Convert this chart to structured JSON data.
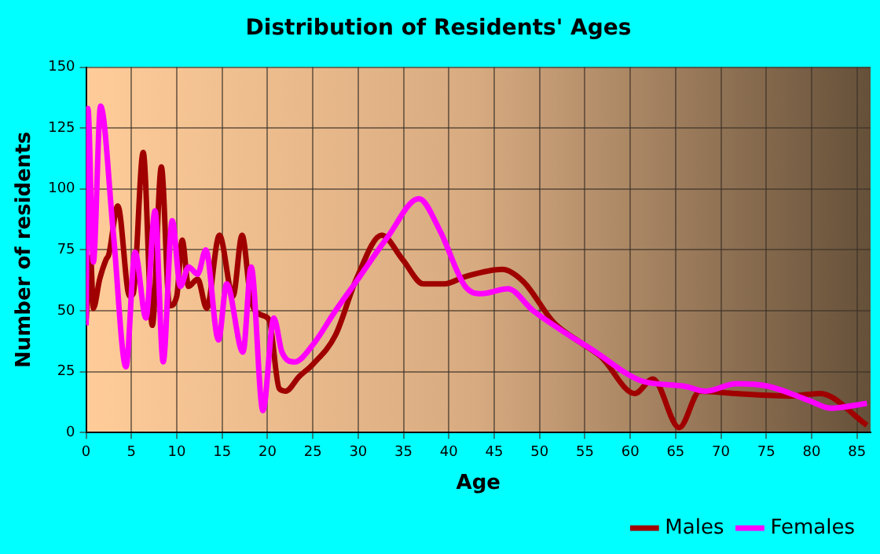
{
  "chart_data": {
    "type": "line",
    "title": "Distribution of Residents' Ages",
    "xlabel": "Age",
    "ylabel": "Number of residents",
    "series": [
      {
        "name": "Males",
        "color": "#a00000",
        "x": [
          0,
          0.5,
          0.8,
          1.5,
          2.2,
          2.5,
          3.5,
          4.8,
          5.2,
          6.3,
          7.3,
          8.3,
          9.2,
          10,
          10.6,
          11.3,
          12.3,
          13.3,
          14.7,
          16.2,
          17.2,
          18.2,
          19.5,
          20.2,
          21.3,
          22,
          23.5,
          25,
          27.5,
          29.8,
          32.6,
          34.9,
          37.2,
          39.5,
          41.8,
          45.9,
          48.2,
          51.6,
          54.5,
          56.8,
          60.5,
          62.5,
          65.4,
          67.7,
          71.7,
          77.5,
          80.9,
          86.1
        ],
        "values": [
          46,
          72,
          51,
          63,
          71,
          73,
          93,
          56,
          57,
          115,
          44,
          109,
          52,
          56,
          79,
          60,
          63,
          51,
          81,
          56,
          81,
          54,
          48,
          46,
          18,
          17,
          23,
          28,
          40,
          63,
          81,
          71,
          61,
          61,
          64,
          67,
          62,
          45,
          37,
          31,
          16,
          22,
          2,
          17,
          16,
          15,
          16,
          3
        ]
      },
      {
        "name": "Females",
        "color": "#ff00ff",
        "x": [
          0,
          0.2,
          0.8,
          1.6,
          3,
          4.4,
          5.4,
          6.6,
          7.6,
          8.5,
          9.5,
          10.4,
          11.3,
          12.3,
          13.2,
          14.6,
          15.5,
          17.3,
          18.2,
          19.5,
          20.7,
          21.6,
          23,
          25,
          27.5,
          29.8,
          33.2,
          36.7,
          39,
          41.8,
          43.6,
          46.5,
          49.3,
          52.8,
          56.2,
          59.7,
          61.4,
          66,
          68.3,
          71.7,
          75.2,
          79.8,
          82.1,
          86.1
        ],
        "values": [
          44,
          133,
          70,
          134,
          82,
          27,
          74,
          47,
          91,
          29,
          87,
          60,
          68,
          65,
          75,
          38,
          61,
          33,
          68,
          9,
          47,
          33,
          29,
          36,
          50,
          62,
          80,
          96,
          83,
          60,
          57,
          59,
          50,
          41,
          33,
          24,
          21,
          19,
          17,
          20,
          19,
          13,
          10,
          12
        ]
      }
    ],
    "xlim": [
      0,
      86.5
    ],
    "xticks": [
      0,
      5,
      10,
      15,
      20,
      25,
      30,
      35,
      40,
      45,
      50,
      55,
      60,
      65,
      70,
      75,
      80,
      85
    ],
    "ylim": [
      0,
      150
    ],
    "yticks": [
      0,
      25,
      50,
      75,
      100,
      125,
      150
    ],
    "grid": true,
    "legend": "bottom right",
    "marker": "none",
    "line_style": "solid"
  }
}
